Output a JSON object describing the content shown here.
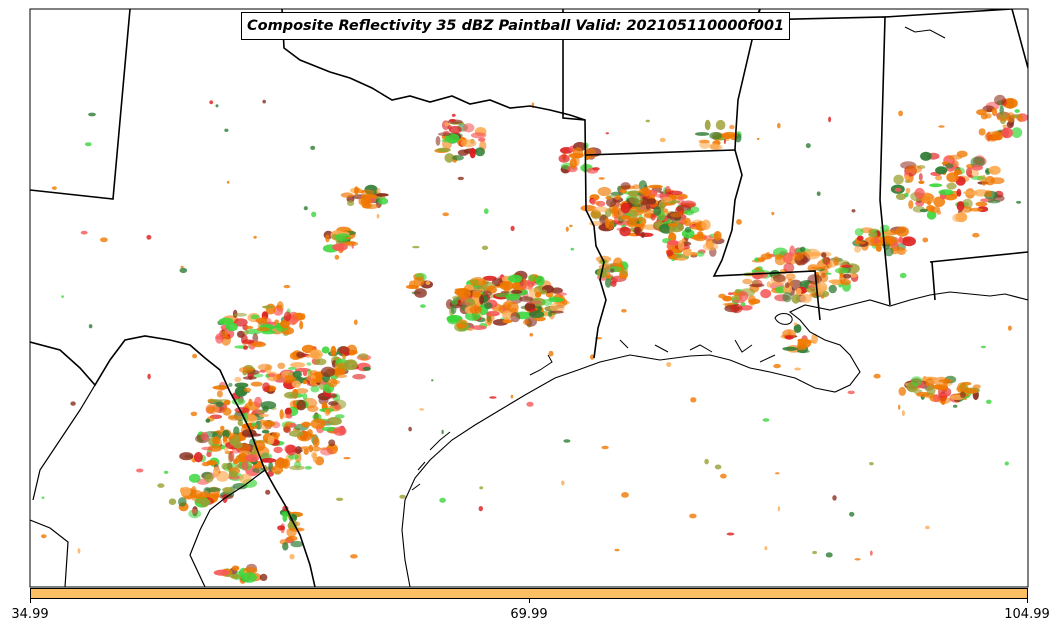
{
  "title": "Composite Reflectivity 35 dBZ Paintball Valid: 202105110000f001",
  "colorbar": {
    "color": "#fdbf63",
    "ticks": [
      "34.99",
      "69.99",
      "104.99"
    ]
  },
  "palette": {
    "orange": "#f07800",
    "light_orange": "#fdaa50",
    "red": "#dd1c1c",
    "light_red": "#f85858",
    "green": "#39d639",
    "dark_green": "#2e7d32",
    "olive": "#9aa032",
    "brown": "#8b2d1e"
  }
}
